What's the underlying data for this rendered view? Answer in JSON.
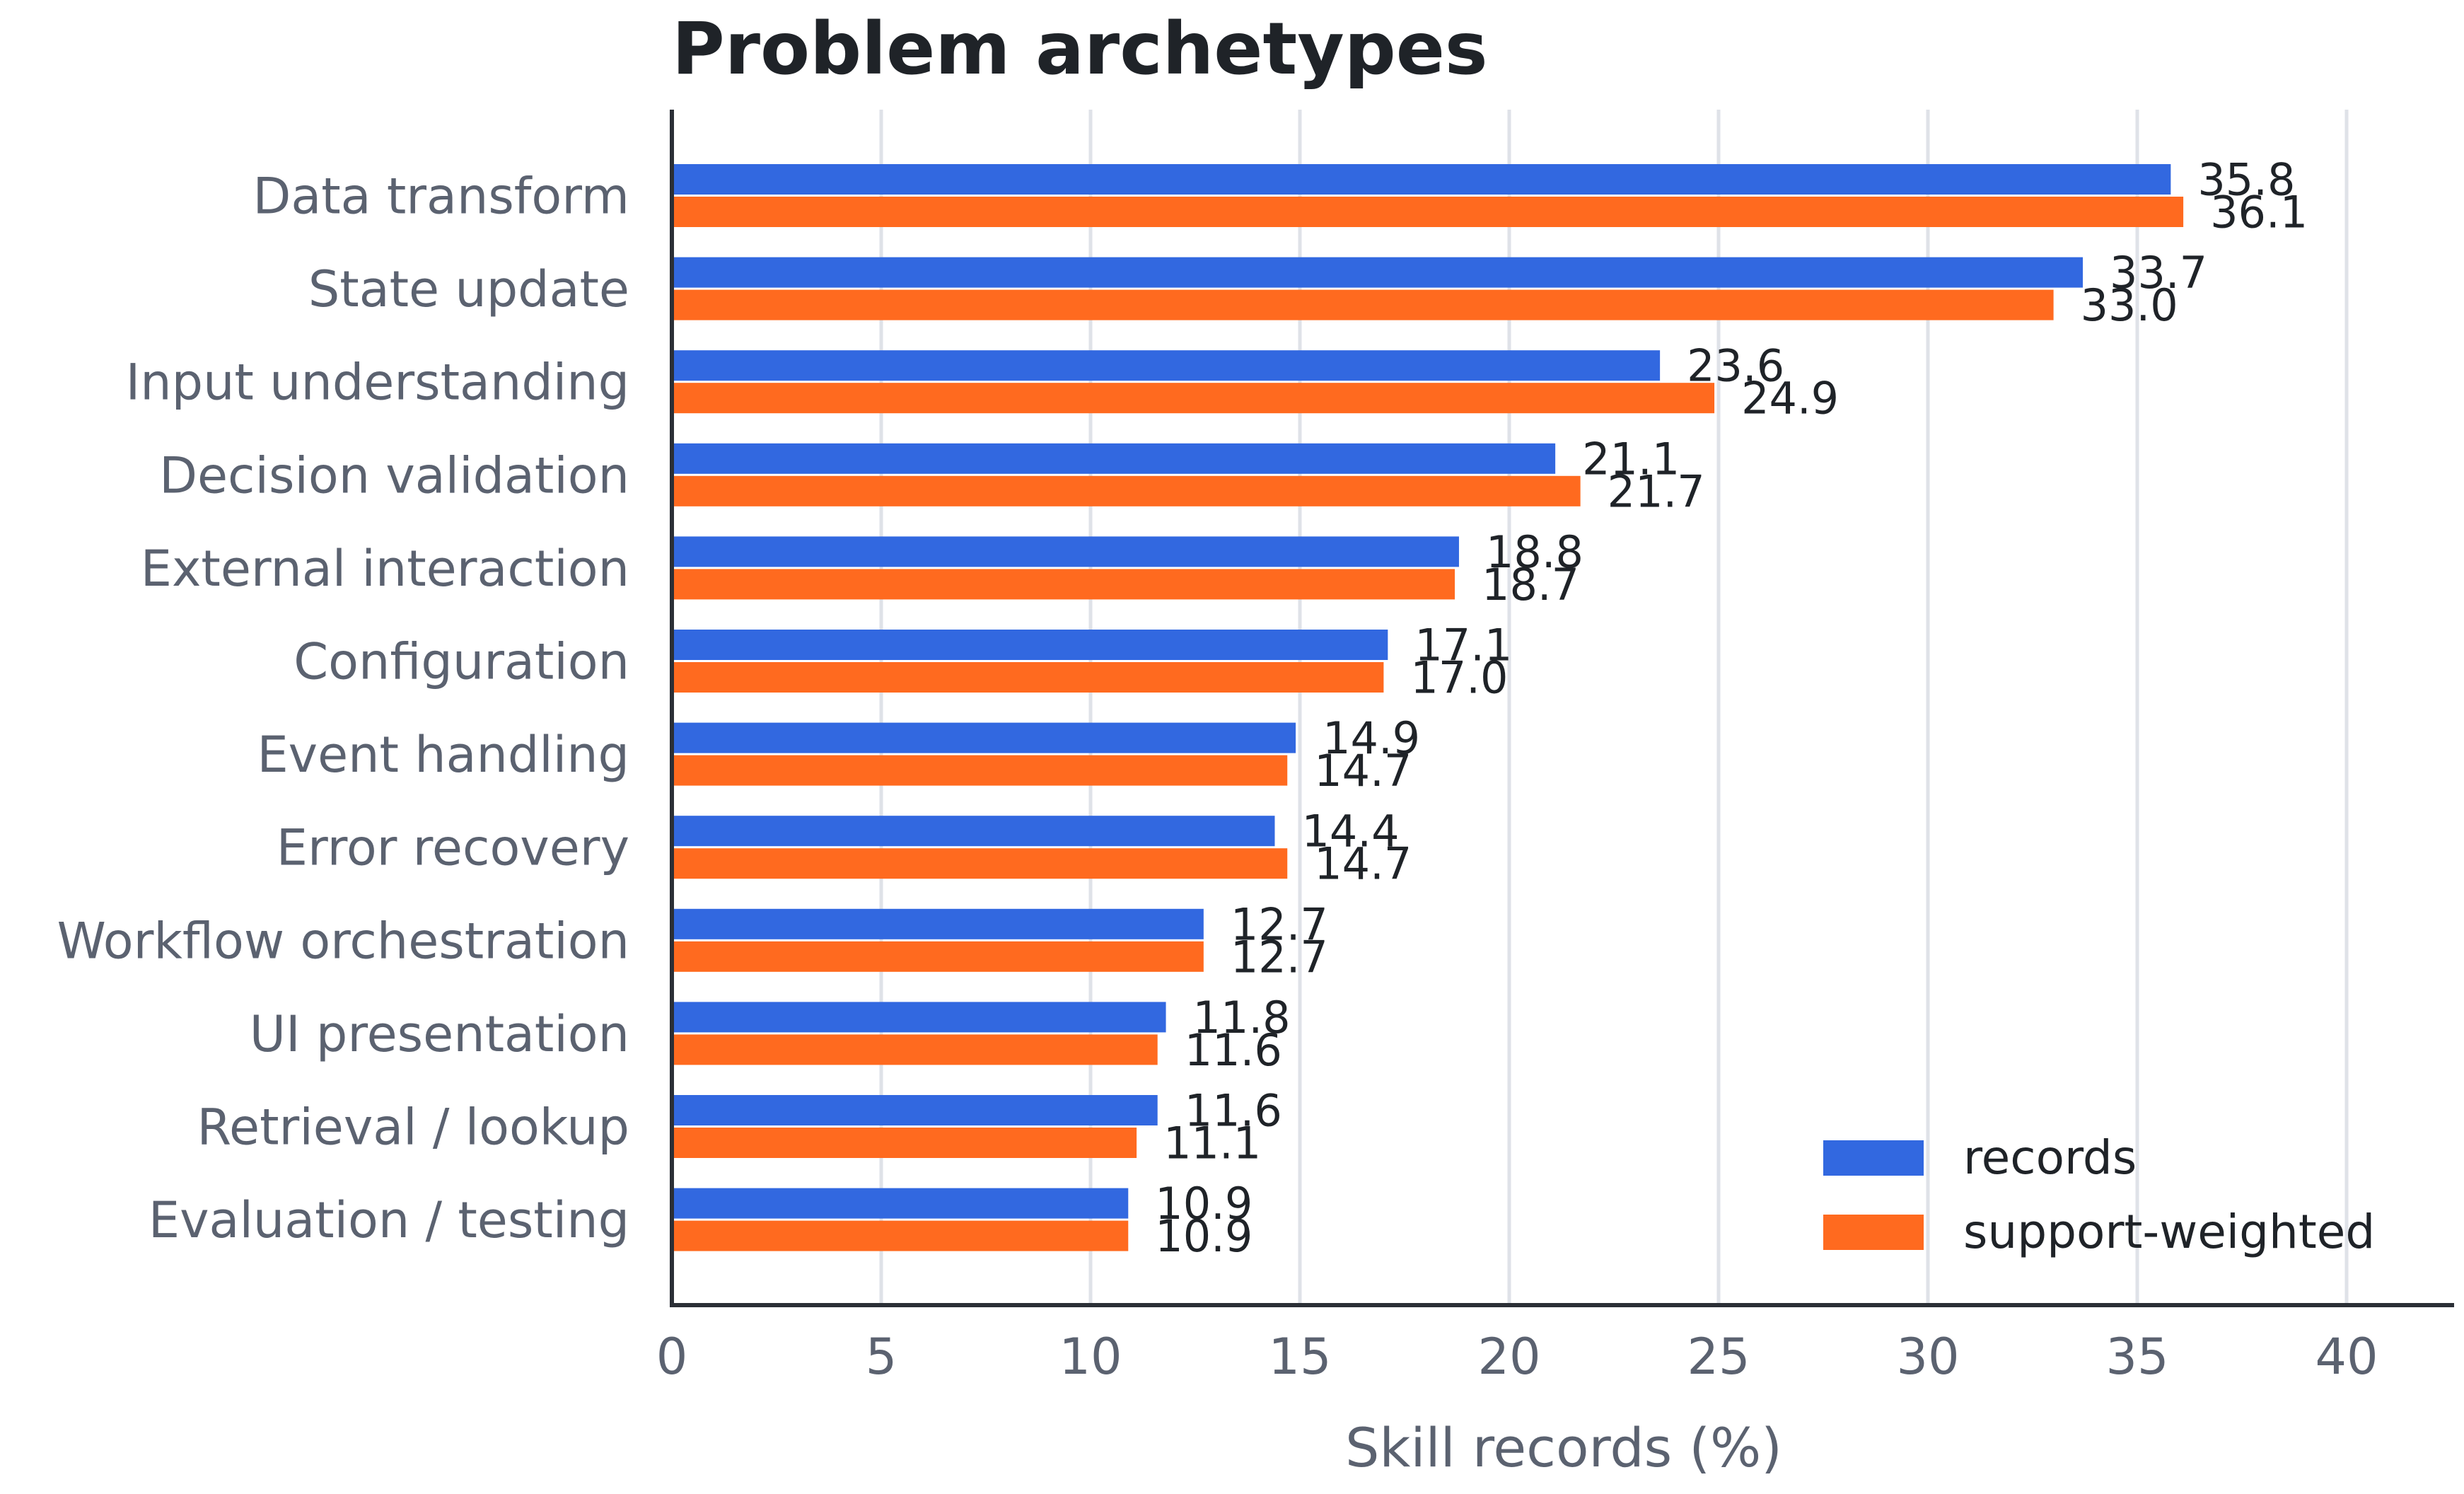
{
  "chart_data": {
    "type": "bar",
    "orientation": "horizontal",
    "title": "Problem archetypes",
    "xlabel": "Skill records (%)",
    "ylabel": "",
    "xlim": [
      0,
      42.5
    ],
    "xticks": [
      "0",
      "5",
      "10",
      "15",
      "20",
      "25",
      "30",
      "35",
      "40"
    ],
    "grid": "vertical",
    "legend_position": "lower-right",
    "categories": [
      "Data transform",
      "State update",
      "Input understanding",
      "Decision validation",
      "External interaction",
      "Configuration",
      "Event handling",
      "Error recovery",
      "Workflow orchestration",
      "UI presentation",
      "Retrieval / lookup",
      "Evaluation / testing"
    ],
    "series": [
      {
        "name": "records",
        "color": "#3268e0",
        "values": [
          35.8,
          33.7,
          23.6,
          21.1,
          18.8,
          17.1,
          14.9,
          14.4,
          12.7,
          11.8,
          11.6,
          10.9
        ],
        "labels": [
          "35.8",
          "33.7",
          "23.6",
          "21.1",
          "18.8",
          "17.1",
          "14.9",
          "14.4",
          "12.7",
          "11.8",
          "11.6",
          "10.9"
        ]
      },
      {
        "name": "support-weighted",
        "color": "#ff6a1f",
        "values": [
          36.1,
          33.0,
          24.9,
          21.7,
          18.7,
          17.0,
          14.7,
          14.7,
          12.7,
          11.6,
          11.1,
          10.9
        ],
        "labels": [
          "36.1",
          "33.0",
          "24.9",
          "21.7",
          "18.7",
          "17.0",
          "14.7",
          "14.7",
          "12.7",
          "11.6",
          "11.1",
          "10.9"
        ]
      }
    ]
  }
}
